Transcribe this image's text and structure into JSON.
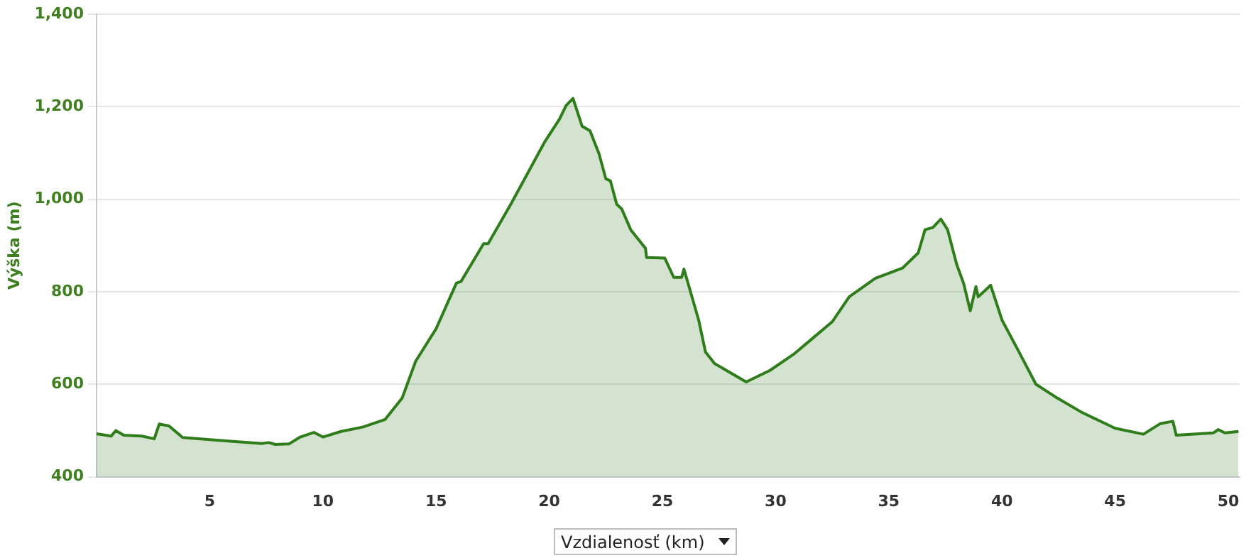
{
  "chart_data": {
    "type": "area",
    "ylabel": "Výška (m)",
    "xlabel": "Vzdialenosť (km)",
    "x": [
      0,
      0.65,
      0.85,
      1.2,
      2.0,
      2.55,
      2.77,
      3.2,
      3.8,
      4.6,
      5.6,
      7.3,
      7.6,
      7.9,
      8.5,
      9.0,
      9.6,
      10.0,
      10.8,
      11.8,
      12.75,
      13.5,
      14.1,
      15.0,
      15.9,
      16.1,
      17.1,
      17.3,
      18.3,
      19.8,
      20.45,
      20.75,
      21.05,
      21.45,
      21.8,
      22.2,
      22.5,
      22.7,
      22.98,
      23.2,
      23.6,
      24.25,
      24.3,
      25.1,
      25.5,
      25.85,
      25.95,
      26.6,
      26.9,
      27.3,
      28.7,
      29.75,
      30.8,
      31.65,
      32.5,
      33.25,
      34.4,
      35.6,
      36.3,
      36.6,
      36.95,
      37.3,
      37.6,
      38.0,
      38.3,
      38.6,
      38.85,
      38.95,
      39.5,
      40.0,
      40.75,
      41.5,
      42.45,
      43.5,
      45.0,
      46.25,
      47.0,
      47.55,
      47.7,
      49.35,
      49.55,
      49.85,
      50.45
    ],
    "values": [
      493,
      488,
      500,
      490,
      488,
      482,
      514,
      510,
      485,
      482,
      478,
      472,
      474,
      470,
      471,
      486,
      496,
      486,
      498,
      508,
      524,
      570,
      650,
      720,
      819,
      822,
      904,
      904,
      989,
      1124,
      1173,
      1203,
      1218,
      1158,
      1148,
      1098,
      1044,
      1040,
      989,
      979,
      934,
      894,
      874,
      873,
      831,
      831,
      849,
      739,
      670,
      645,
      605,
      630,
      665,
      700,
      735,
      789,
      829,
      851,
      884,
      934,
      939,
      957,
      934,
      859,
      819,
      759,
      811,
      789,
      814,
      739,
      670,
      600,
      570,
      540,
      505,
      492,
      515,
      520,
      490,
      495,
      502,
      495,
      498
    ],
    "color": "#2e7d1a",
    "xlim": [
      0,
      50.5
    ],
    "xticks": [
      {
        "value": 0,
        "label": null
      },
      5,
      10,
      15,
      20,
      25,
      30,
      35,
      40,
      45,
      50
    ],
    "ylim": [
      400,
      1400
    ],
    "yticks": [
      {
        "value": 400,
        "label": "400"
      },
      {
        "value": 600,
        "label": "600"
      },
      {
        "value": 800,
        "label": "800"
      },
      {
        "value": 1000,
        "label": "1,000"
      },
      {
        "value": 1200,
        "label": "1,200"
      },
      {
        "value": 1400,
        "label": "1,400"
      }
    ],
    "grid": "y",
    "legend": false,
    "marker": "none",
    "line_style": "solid"
  }
}
